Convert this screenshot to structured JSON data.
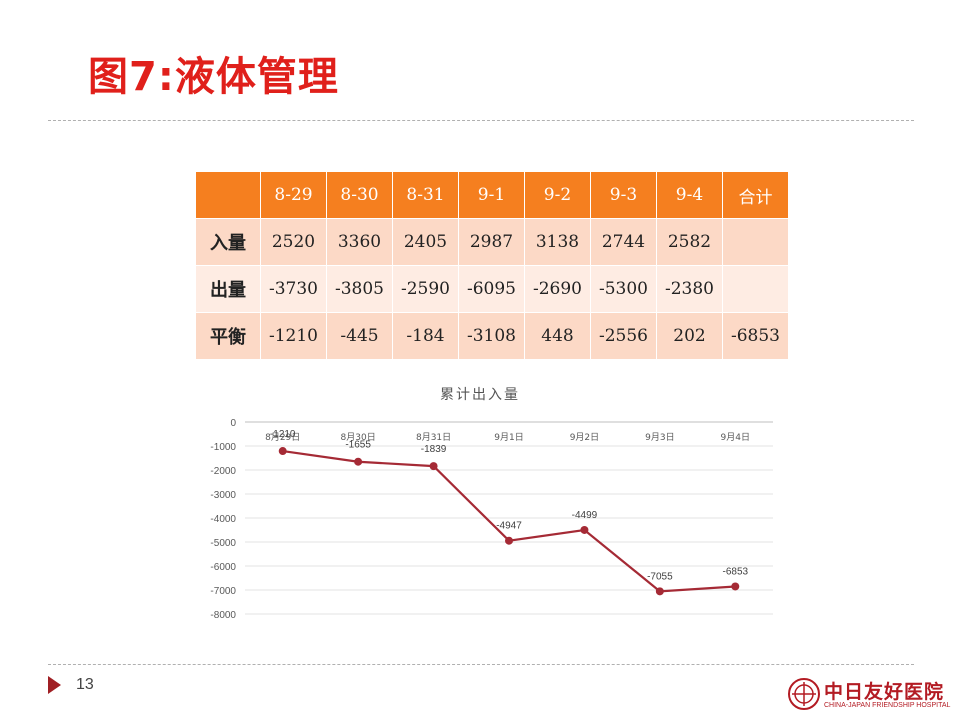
{
  "slide": {
    "title": "图7:液体管理",
    "page_number": "13",
    "logo": {
      "name": "中日友好医院",
      "subtitle": "CHINA-JAPAN FRIENDSHIP HOSPITAL"
    }
  },
  "table": {
    "headers": [
      "",
      "8-29",
      "8-30",
      "8-31",
      "9-1",
      "9-2",
      "9-3",
      "9-4",
      "合计"
    ],
    "rows": [
      {
        "label": "入量",
        "cells": [
          "2520",
          "3360",
          "2405",
          "2987",
          "3138",
          "2744",
          "2582",
          ""
        ]
      },
      {
        "label": "出量",
        "cells": [
          "-3730",
          "-3805",
          "-2590",
          "-6095",
          "-2690",
          "-5300",
          "-2380",
          ""
        ]
      },
      {
        "label": "平衡",
        "cells": [
          "-1210",
          "-445",
          "-184",
          "-3108",
          "448",
          "-2556",
          "202",
          "-6853"
        ]
      }
    ],
    "colors": {
      "header": "#f57f1f",
      "row_dark": "#fcd9c6",
      "row_light": "#feece3"
    }
  },
  "chart_data": {
    "type": "line",
    "title": "累计出入量",
    "categories": [
      "8月29日",
      "8月30日",
      "8月31日",
      "9月1日",
      "9月2日",
      "9月3日",
      "9月4日"
    ],
    "series": [
      {
        "values": [
          -1210,
          -1655,
          -1839,
          -4947,
          -4499,
          -7055,
          -6853
        ],
        "color": "#a52a35"
      }
    ],
    "data_labels": [
      "-1210",
      "-1655",
      "-1839",
      "-4947",
      "-4499",
      "-7055",
      "-6853"
    ],
    "y_ticks": [
      "0",
      "-1000",
      "-2000",
      "-3000",
      "-4000",
      "-5000",
      "-6000",
      "-7000",
      "-8000"
    ],
    "ylim": [
      -8000,
      0
    ],
    "x_axis_position": "top",
    "grid": true,
    "xlabel": "",
    "ylabel": ""
  }
}
